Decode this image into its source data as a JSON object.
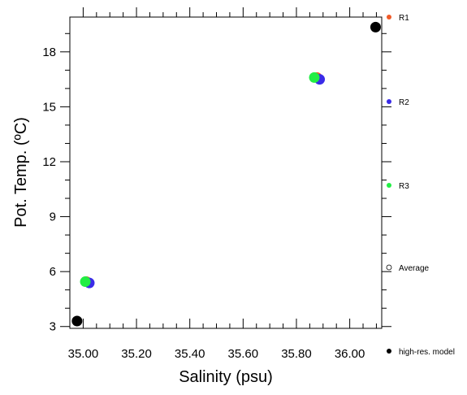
{
  "chart_data": {
    "type": "scatter",
    "title": "",
    "xlabel": "Salinity (psu)",
    "ylabel": "Pot. Temp. (ºC)",
    "xlim": [
      34.95,
      36.12
    ],
    "ylim": [
      2.9,
      19.9
    ],
    "xticks": [
      35.0,
      35.2,
      35.4,
      35.6,
      35.8,
      36.0
    ],
    "xtick_labels": [
      "35.00",
      "35.20",
      "35.40",
      "35.60",
      "35.80",
      "36.00"
    ],
    "yticks": [
      3,
      6,
      9,
      12,
      15,
      18
    ],
    "ytick_labels": [
      "3",
      "6",
      "9",
      "12",
      "15",
      "18"
    ],
    "grid": false,
    "legend_position": "right",
    "series": [
      {
        "name": "R1",
        "color": "#f05a28",
        "marker": "filled-circle",
        "points": [
          {
            "x": 35.012,
            "y": 5.45
          },
          {
            "x": 35.877,
            "y": 16.6
          }
        ]
      },
      {
        "name": "R2",
        "color": "#3a2be8",
        "marker": "filled-circle",
        "points": [
          {
            "x": 35.023,
            "y": 5.38
          },
          {
            "x": 35.887,
            "y": 16.5
          }
        ]
      },
      {
        "name": "R3",
        "color": "#22ee44",
        "marker": "filled-circle",
        "points": [
          {
            "x": 35.008,
            "y": 5.45
          },
          {
            "x": 35.867,
            "y": 16.6
          }
        ]
      },
      {
        "name": "Average",
        "color": "#000000",
        "marker": "open-circle",
        "points": []
      },
      {
        "name": "high-res. model",
        "color": "#000000",
        "marker": "filled-circle",
        "points": [
          {
            "x": 34.977,
            "y": 3.3
          },
          {
            "x": 36.097,
            "y": 19.35
          }
        ]
      }
    ]
  }
}
